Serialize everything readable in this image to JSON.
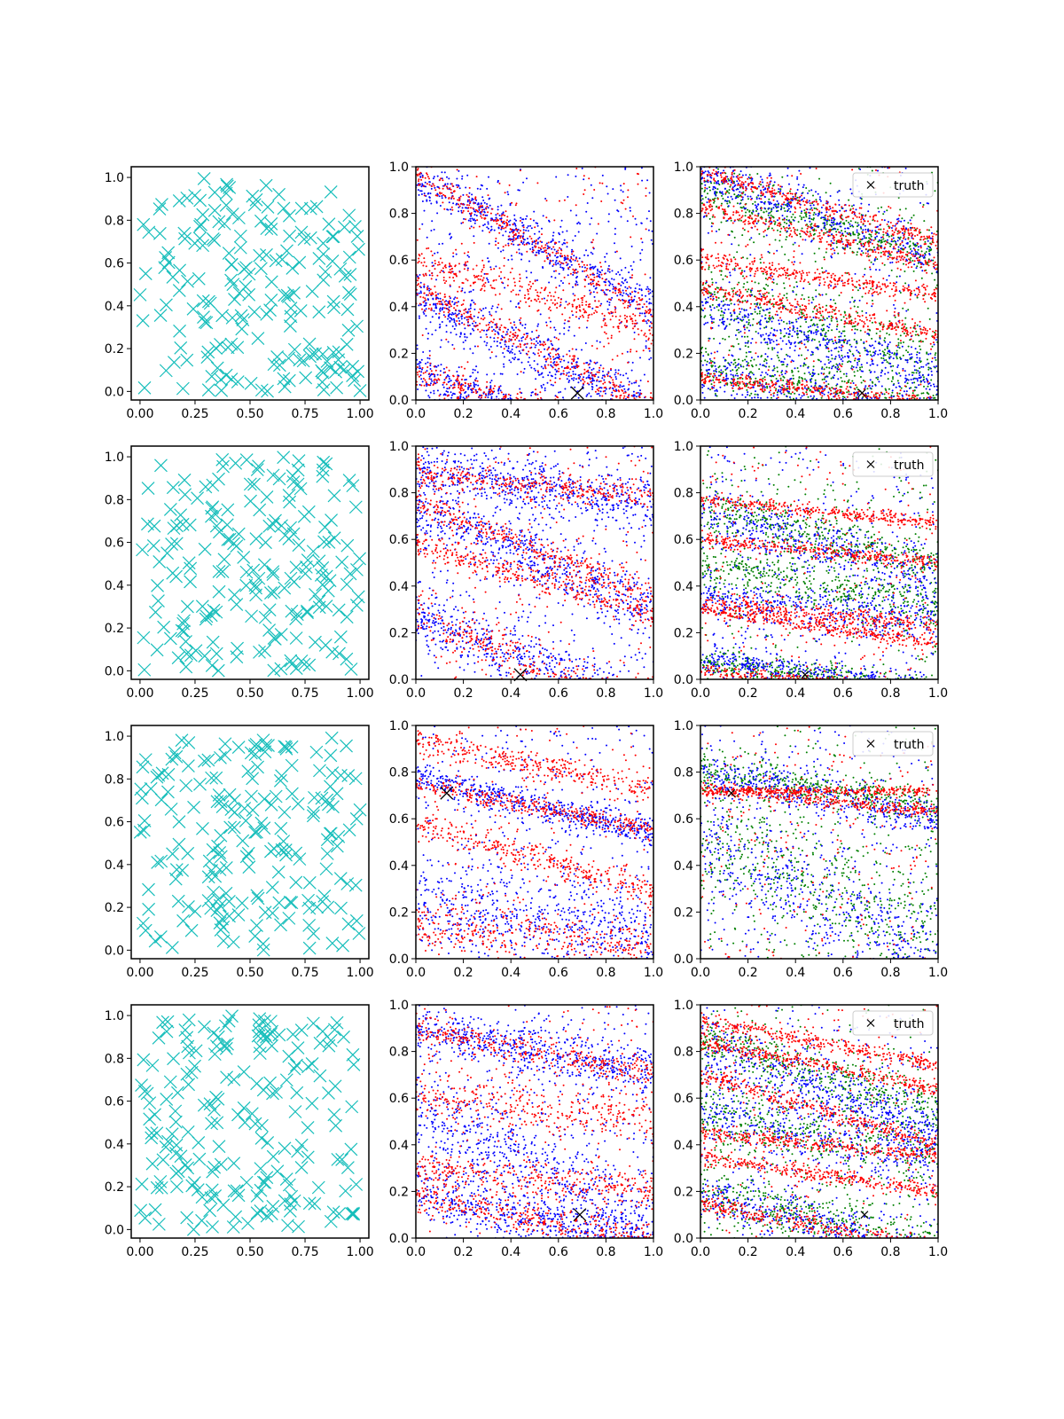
{
  "figure": {
    "colors": {
      "cross": "#17bebb",
      "blue": "#0000ff",
      "red": "#ff0000",
      "green": "#008000",
      "truth": "#000000",
      "frame": "#000000"
    }
  },
  "chart_data": [
    {
      "row": 0,
      "truth": [
        0.68,
        0.03
      ],
      "col0": {
        "type": "scatter",
        "xlim": [
          -0.04,
          1.04
        ],
        "ylim": [
          -0.04,
          1.05
        ],
        "xticks": [
          "0.00",
          "0.25",
          "0.50",
          "0.75",
          "1.00"
        ],
        "yticks": [
          "0.0",
          "0.2",
          "0.4",
          "0.6",
          "0.8",
          "1.0"
        ],
        "tickvals": [
          0,
          0.25,
          0.5,
          0.75,
          1.0
        ],
        "ytickvals": [
          0,
          0.2,
          0.4,
          0.6,
          0.8,
          1.0
        ],
        "n_points": 200,
        "marker": "x"
      },
      "col1": {
        "type": "scatter",
        "xlim": [
          0,
          1
        ],
        "ylim": [
          0,
          1
        ],
        "xticks": [
          "0.0",
          "0.2",
          "0.4",
          "0.6",
          "0.8",
          "1.0"
        ],
        "yticks": [
          "0.0",
          "0.2",
          "0.4",
          "0.6",
          "0.8",
          "1.0"
        ],
        "blue_bands": [
          [
            0.95,
            -0.55,
            0.05
          ],
          [
            0.45,
            -0.5,
            0.06
          ],
          [
            0.12,
            -0.35,
            0.05
          ]
        ],
        "red_bands": [
          [
            0.97,
            -0.6,
            0.03
          ],
          [
            0.47,
            -0.5,
            0.03
          ],
          [
            0.12,
            -0.3,
            0.03
          ],
          [
            0.6,
            -0.3,
            0.04
          ]
        ]
      },
      "col2": {
        "type": "scatter",
        "xlim": [
          0,
          1
        ],
        "ylim": [
          0,
          1
        ],
        "xticks": [
          "0.0",
          "0.2",
          "0.4",
          "0.6",
          "0.8",
          "1.0"
        ],
        "yticks": [
          "0.0",
          "0.2",
          "0.4",
          "0.6",
          "0.8",
          "1.0"
        ],
        "legend": "truth",
        "blue_bands": [
          [
            0.97,
            -0.35,
            0.05
          ],
          [
            0.4,
            -0.3,
            0.05
          ],
          [
            0.12,
            -0.2,
            0.06
          ]
        ],
        "red_bands": [
          [
            0.98,
            -0.3,
            0.02
          ],
          [
            0.83,
            -0.25,
            0.02
          ],
          [
            0.48,
            -0.2,
            0.02
          ],
          [
            0.09,
            -0.1,
            0.015
          ],
          [
            0.6,
            -0.15,
            0.02
          ]
        ],
        "green_bands": [
          [
            0.9,
            -0.3,
            0.05
          ],
          [
            0.45,
            -0.3,
            0.08
          ],
          [
            0.15,
            -0.2,
            0.05
          ]
        ]
      }
    },
    {
      "row": 1,
      "truth": [
        0.44,
        0.02
      ],
      "col0": {
        "type": "scatter",
        "xlim": [
          -0.04,
          1.04
        ],
        "ylim": [
          -0.04,
          1.05
        ],
        "xticks": [
          "0.00",
          "0.25",
          "0.50",
          "0.75",
          "1.00"
        ],
        "yticks": [
          "0.0",
          "0.2",
          "0.4",
          "0.6",
          "0.8",
          "1.0"
        ],
        "tickvals": [
          0,
          0.25,
          0.5,
          0.75,
          1.0
        ],
        "ytickvals": [
          0,
          0.2,
          0.4,
          0.6,
          0.8,
          1.0
        ],
        "n_points": 200,
        "marker": "x"
      },
      "col1": {
        "type": "scatter",
        "xlim": [
          0,
          1
        ],
        "ylim": [
          0,
          1
        ],
        "xticks": [
          "0.0",
          "0.2",
          "0.4",
          "0.6",
          "0.8",
          "1.0"
        ],
        "yticks": [
          "0.0",
          "0.2",
          "0.4",
          "0.6",
          "0.8",
          "1.0"
        ],
        "blue_bands": [
          [
            0.75,
            -0.45,
            0.06
          ],
          [
            0.27,
            -0.4,
            0.06
          ],
          [
            0.9,
            -0.15,
            0.05
          ]
        ],
        "red_bands": [
          [
            0.76,
            -0.4,
            0.03
          ],
          [
            0.28,
            -0.45,
            0.04
          ],
          [
            0.88,
            -0.1,
            0.03
          ],
          [
            0.58,
            -0.3,
            0.03
          ]
        ]
      },
      "col2": {
        "type": "scatter",
        "xlim": [
          0,
          1
        ],
        "ylim": [
          0,
          1
        ],
        "xticks": [
          "0.0",
          "0.2",
          "0.4",
          "0.6",
          "0.8",
          "1.0"
        ],
        "yticks": [
          "0.0",
          "0.2",
          "0.4",
          "0.6",
          "0.8",
          "1.0"
        ],
        "legend": "truth",
        "blue_bands": [
          [
            0.72,
            -0.3,
            0.06
          ],
          [
            0.08,
            -0.12,
            0.03
          ],
          [
            0.35,
            -0.1,
            0.05
          ]
        ],
        "red_bands": [
          [
            0.77,
            -0.1,
            0.015
          ],
          [
            0.6,
            -0.1,
            0.015
          ],
          [
            0.3,
            -0.15,
            0.015
          ],
          [
            0.04,
            -0.1,
            0.012
          ],
          [
            0.33,
            -0.1,
            0.02
          ]
        ],
        "green_bands": [
          [
            0.74,
            -0.25,
            0.05
          ],
          [
            0.07,
            -0.12,
            0.03
          ],
          [
            0.5,
            -0.2,
            0.05
          ]
        ]
      }
    },
    {
      "row": 2,
      "truth": [
        0.13,
        0.71
      ],
      "col0": {
        "type": "scatter",
        "xlim": [
          -0.04,
          1.04
        ],
        "ylim": [
          -0.04,
          1.05
        ],
        "xticks": [
          "0.00",
          "0.25",
          "0.50",
          "0.75",
          "1.00"
        ],
        "yticks": [
          "0.0",
          "0.2",
          "0.4",
          "0.6",
          "0.8",
          "1.0"
        ],
        "tickvals": [
          0,
          0.25,
          0.5,
          0.75,
          1.0
        ],
        "ytickvals": [
          0,
          0.2,
          0.4,
          0.6,
          0.8,
          1.0
        ],
        "n_points": 200,
        "marker": "x"
      },
      "col1": {
        "type": "scatter",
        "xlim": [
          0,
          1
        ],
        "ylim": [
          0,
          1
        ],
        "xticks": [
          "0.0",
          "0.2",
          "0.4",
          "0.6",
          "0.8",
          "1.0"
        ],
        "yticks": [
          "0.0",
          "0.2",
          "0.4",
          "0.6",
          "0.8",
          "1.0"
        ],
        "blue_bands": [
          [
            0.78,
            -0.25,
            0.03
          ],
          [
            0.25,
            -0.15,
            0.1
          ]
        ],
        "red_bands": [
          [
            0.75,
            -0.2,
            0.02
          ],
          [
            0.58,
            -0.3,
            0.03
          ],
          [
            0.93,
            -0.2,
            0.03
          ],
          [
            0.15,
            -0.1,
            0.05
          ]
        ]
      },
      "col2": {
        "type": "scatter",
        "xlim": [
          0,
          1
        ],
        "ylim": [
          0,
          1
        ],
        "xticks": [
          "0.0",
          "0.2",
          "0.4",
          "0.6",
          "0.8",
          "1.0"
        ],
        "yticks": [
          "0.0",
          "0.2",
          "0.4",
          "0.6",
          "0.8",
          "1.0"
        ],
        "legend": "truth",
        "blue_bands": [
          [
            0.8,
            -0.2,
            0.05
          ],
          [
            0.5,
            -0.5,
            0.1
          ]
        ],
        "red_bands": [
          [
            0.73,
            -0.1,
            0.015
          ],
          [
            0.72,
            0.0,
            0.01
          ]
        ],
        "green_bands": [
          [
            0.8,
            -0.15,
            0.04
          ],
          [
            0.5,
            -0.4,
            0.12
          ]
        ]
      }
    },
    {
      "row": 3,
      "truth": [
        0.69,
        0.1
      ],
      "col0": {
        "type": "scatter",
        "xlim": [
          -0.04,
          1.04
        ],
        "ylim": [
          -0.04,
          1.05
        ],
        "xticks": [
          "0.00",
          "0.25",
          "0.50",
          "0.75",
          "1.00"
        ],
        "yticks": [
          "0.0",
          "0.2",
          "0.4",
          "0.6",
          "0.8",
          "1.0"
        ],
        "tickvals": [
          0,
          0.25,
          0.5,
          0.75,
          1.0
        ],
        "ytickvals": [
          0,
          0.2,
          0.4,
          0.6,
          0.8,
          1.0
        ],
        "n_points": 200,
        "marker": "x"
      },
      "col1": {
        "type": "scatter",
        "xlim": [
          0,
          1
        ],
        "ylim": [
          0,
          1
        ],
        "xticks": [
          "0.0",
          "0.2",
          "0.4",
          "0.6",
          "0.8",
          "1.0"
        ],
        "yticks": [
          "0.0",
          "0.2",
          "0.4",
          "0.6",
          "0.8",
          "1.0"
        ],
        "blue_bands": [
          [
            0.2,
            -0.25,
            0.06
          ],
          [
            0.55,
            -0.5,
            0.1
          ],
          [
            0.9,
            -0.2,
            0.05
          ]
        ],
        "red_bands": [
          [
            0.18,
            -0.2,
            0.03
          ],
          [
            0.3,
            -0.1,
            0.04
          ],
          [
            0.9,
            -0.2,
            0.03
          ],
          [
            0.6,
            -0.1,
            0.05
          ]
        ]
      },
      "col2": {
        "type": "scatter",
        "xlim": [
          0,
          1
        ],
        "ylim": [
          0,
          1
        ],
        "xticks": [
          "0.0",
          "0.2",
          "0.4",
          "0.6",
          "0.8",
          "1.0"
        ],
        "yticks": [
          "0.0",
          "0.2",
          "0.4",
          "0.6",
          "0.8",
          "1.0"
        ],
        "legend": "truth",
        "blue_bands": [
          [
            0.85,
            -0.4,
            0.06
          ],
          [
            0.55,
            -0.2,
            0.08
          ],
          [
            0.2,
            -0.3,
            0.05
          ]
        ],
        "red_bands": [
          [
            0.94,
            -0.2,
            0.015
          ],
          [
            0.84,
            -0.2,
            0.015
          ],
          [
            0.45,
            -0.1,
            0.015
          ],
          [
            0.35,
            -0.15,
            0.015
          ],
          [
            0.15,
            -0.2,
            0.02
          ],
          [
            0.7,
            -0.3,
            0.02
          ]
        ],
        "green_bands": [
          [
            0.85,
            -0.3,
            0.05
          ],
          [
            0.2,
            -0.25,
            0.06
          ],
          [
            0.55,
            -0.2,
            0.08
          ]
        ]
      }
    }
  ]
}
